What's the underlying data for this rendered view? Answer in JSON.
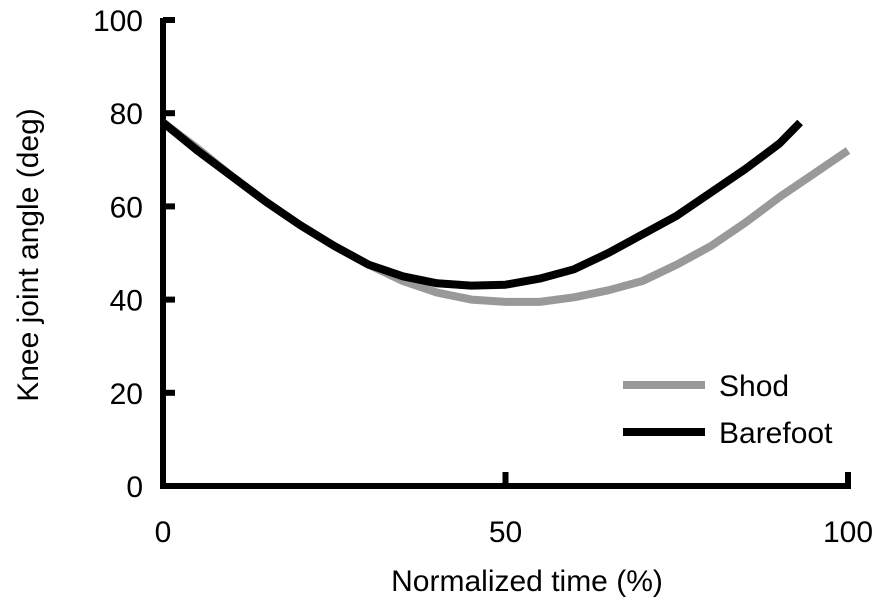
{
  "chart_data": {
    "type": "line",
    "xlabel": "Normalized time (%)",
    "ylabel": "Knee joint angle (deg)",
    "xlim": [
      0,
      100
    ],
    "ylim": [
      0,
      100
    ],
    "xticks": [
      0,
      50,
      100
    ],
    "yticks": [
      0,
      20,
      40,
      60,
      80,
      100
    ],
    "grid": false,
    "legend_position": "bottom-right",
    "series": [
      {
        "name": "Shod",
        "color": "#999999",
        "x": [
          0,
          5,
          10,
          15,
          20,
          25,
          30,
          35,
          40,
          45,
          50,
          55,
          60,
          65,
          70,
          75,
          80,
          85,
          90,
          95,
          100
        ],
        "y": [
          78,
          72.5,
          66.5,
          61,
          56,
          51.5,
          47.5,
          44,
          41.5,
          40,
          39.5,
          39.5,
          40.5,
          42,
          44,
          47.5,
          51.5,
          56.5,
          62,
          67,
          72
        ]
      },
      {
        "name": "Barefoot",
        "color": "#000000",
        "x": [
          0,
          5,
          10,
          15,
          20,
          25,
          30,
          35,
          40,
          45,
          50,
          55,
          60,
          65,
          70,
          75,
          80,
          85,
          90,
          93
        ],
        "y": [
          78,
          72,
          66.5,
          61,
          56,
          51.5,
          47.5,
          45,
          43.5,
          43,
          43.2,
          44.5,
          46.5,
          50,
          54,
          58,
          63,
          68,
          73.5,
          78
        ]
      }
    ]
  }
}
